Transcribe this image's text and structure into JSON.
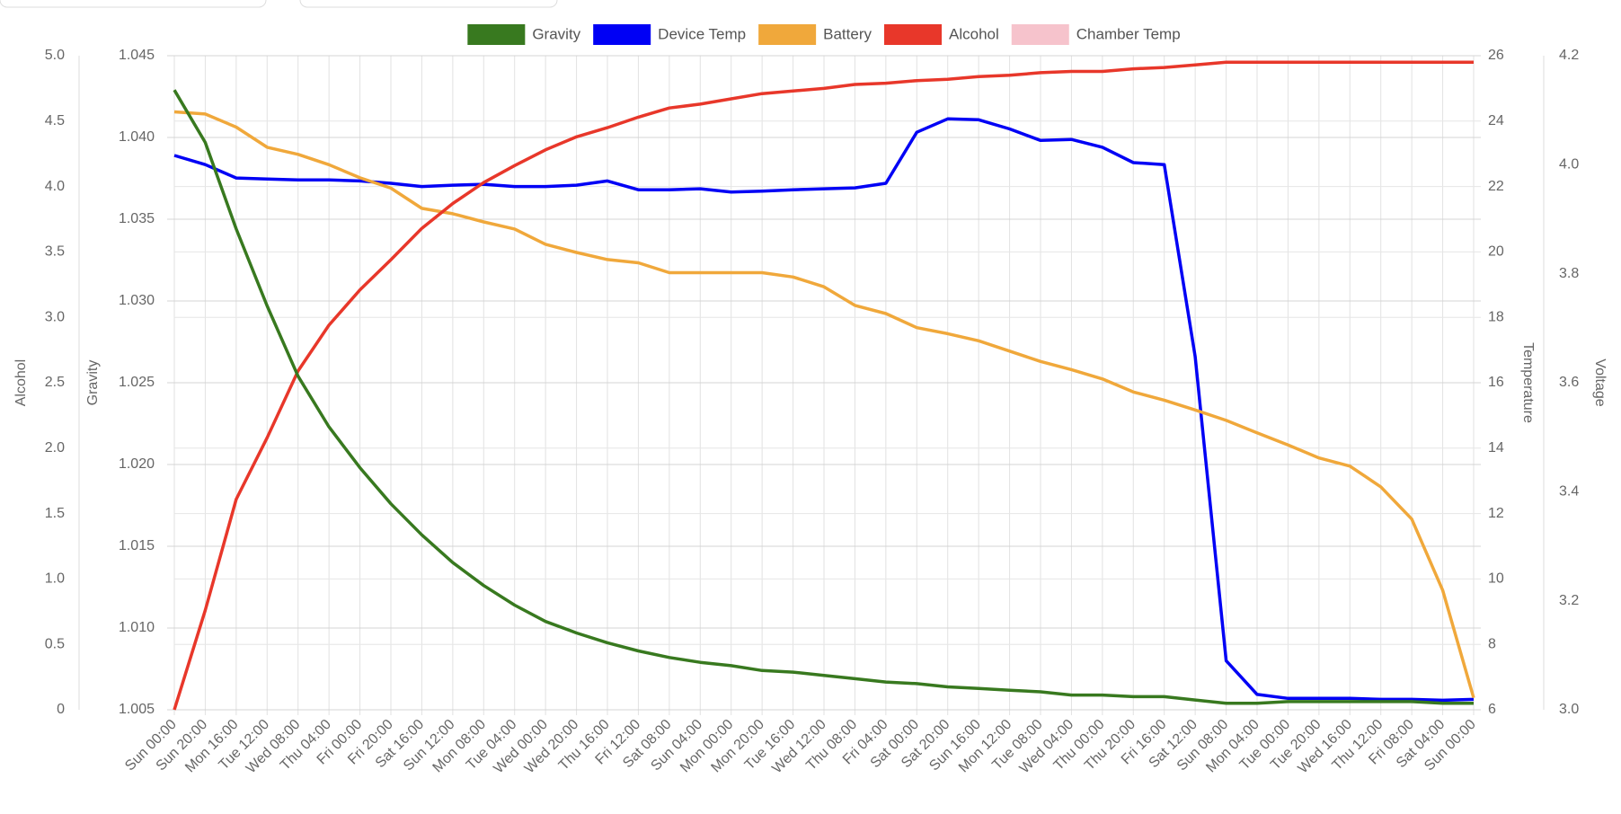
{
  "chart_data": {
    "type": "line",
    "grid": true,
    "legend": "top",
    "categories": [
      "Sun 00:00",
      "Sun 20:00",
      "Mon 16:00",
      "Tue 12:00",
      "Wed 08:00",
      "Thu 04:00",
      "Fri 00:00",
      "Fri 20:00",
      "Sat 16:00",
      "Sun 12:00",
      "Mon 08:00",
      "Tue 04:00",
      "Wed 00:00",
      "Wed 20:00",
      "Thu 16:00",
      "Fri 12:00",
      "Sat 08:00",
      "Sun 04:00",
      "Mon 00:00",
      "Mon 20:00",
      "Tue 16:00",
      "Wed 12:00",
      "Thu 08:00",
      "Fri 04:00",
      "Sat 00:00",
      "Sat 20:00",
      "Sun 16:00",
      "Mon 12:00",
      "Tue 08:00",
      "Wed 04:00",
      "Thu 00:00",
      "Thu 20:00",
      "Fri 16:00",
      "Sat 12:00",
      "Sun 08:00",
      "Mon 04:00",
      "Tue 00:00",
      "Tue 20:00",
      "Wed 16:00",
      "Thu 12:00",
      "Fri 08:00",
      "Sat 04:00",
      "Sun 00:00"
    ],
    "axes": [
      {
        "id": "alcohol",
        "label": "Alcohol",
        "position": "left",
        "lim": [
          0,
          5
        ],
        "ticks": [
          0,
          0.5,
          {
            "value": 1,
            "label": "1.0"
          },
          1.5,
          {
            "value": 2,
            "label": "2.0"
          },
          2.5,
          {
            "value": 3,
            "label": "3.0"
          },
          3.5,
          {
            "value": 4,
            "label": "4.0"
          },
          4.5,
          {
            "value": 5,
            "label": "5.0"
          }
        ]
      },
      {
        "id": "gravity",
        "label": "Gravity",
        "position": "left",
        "lim": [
          1.005,
          1.045
        ],
        "ticks": [
          1.005,
          {
            "value": 1.01,
            "label": "1.010"
          },
          1.015,
          {
            "value": 1.02,
            "label": "1.020"
          },
          1.025,
          {
            "value": 1.03,
            "label": "1.030"
          },
          1.035,
          {
            "value": 1.04,
            "label": "1.040"
          },
          1.045
        ]
      },
      {
        "id": "temperature",
        "label": "Temperature",
        "position": "right",
        "lim": [
          6,
          26
        ],
        "ticks": [
          6,
          8,
          10,
          12,
          14,
          16,
          18,
          20,
          22,
          24,
          26
        ]
      },
      {
        "id": "voltage",
        "label": "Voltage",
        "position": "right",
        "lim": [
          3.0,
          4.2
        ],
        "ticks": [
          {
            "value": 3,
            "label": "3.0"
          },
          3.2,
          3.4,
          3.6,
          3.8,
          {
            "value": 4,
            "label": "4.0"
          },
          4.2
        ]
      }
    ],
    "series": [
      {
        "name": "Gravity",
        "color": "#38791f",
        "axis": "gravity",
        "values": [
          1.0429,
          1.0397,
          1.0344,
          1.0297,
          1.0254,
          1.0223,
          1.0198,
          1.0176,
          1.0157,
          1.014,
          1.0126,
          1.0114,
          1.0104,
          1.0097,
          1.0091,
          1.0086,
          1.0082,
          1.0079,
          1.0077,
          1.0074,
          1.0073,
          1.0071,
          1.0069,
          1.0067,
          1.0066,
          1.0064,
          1.0063,
          1.0062,
          1.0061,
          1.0059,
          1.0059,
          1.0058,
          1.0058,
          1.0056,
          1.0054,
          1.0054,
          1.0055,
          1.0055,
          1.0055,
          1.0055,
          1.0055,
          1.0054,
          1.0054
        ]
      },
      {
        "name": "Device Temp",
        "color": "#0000f5",
        "axis": "temperature",
        "values": [
          22.95,
          22.67,
          22.26,
          22.23,
          22.2,
          22.2,
          22.17,
          22.1,
          22.0,
          22.04,
          22.07,
          22.0,
          22.0,
          22.04,
          22.17,
          21.9,
          21.9,
          21.93,
          21.83,
          21.86,
          21.9,
          21.93,
          21.96,
          22.1,
          23.66,
          24.07,
          24.04,
          23.76,
          23.41,
          23.44,
          23.2,
          22.73,
          22.67,
          16.8,
          7.5,
          6.47,
          6.35,
          6.35,
          6.35,
          6.32,
          6.32,
          6.29,
          6.32
        ]
      },
      {
        "name": "Battery",
        "color": "#f0a83b",
        "axis": "voltage",
        "values": [
          4.097,
          4.093,
          4.069,
          4.032,
          4.019,
          4.0,
          3.976,
          3.957,
          3.92,
          3.91,
          3.895,
          3.882,
          3.854,
          3.839,
          3.826,
          3.82,
          3.802,
          3.802,
          3.802,
          3.802,
          3.794,
          3.776,
          3.742,
          3.727,
          3.701,
          3.69,
          3.677,
          3.658,
          3.639,
          3.624,
          3.607,
          3.583,
          3.568,
          3.55,
          3.531,
          3.508,
          3.486,
          3.462,
          3.447,
          3.409,
          3.35,
          3.219,
          3.022
        ]
      },
      {
        "name": "Alcohol",
        "color": "#e8372a",
        "axis": "alcohol",
        "values": [
          0,
          0.76,
          1.61,
          2.08,
          2.59,
          2.94,
          3.21,
          3.44,
          3.68,
          3.87,
          4.03,
          4.16,
          4.28,
          4.38,
          4.45,
          4.53,
          4.6,
          4.63,
          4.67,
          4.71,
          4.73,
          4.75,
          4.78,
          4.79,
          4.81,
          4.82,
          4.84,
          4.85,
          4.87,
          4.88,
          4.88,
          4.9,
          4.91,
          4.93,
          4.95,
          4.95,
          4.95,
          4.95,
          4.95,
          4.95,
          4.95,
          4.95,
          4.95
        ]
      },
      {
        "name": "Chamber Temp",
        "color": "#f6c3cc",
        "axis": "temperature",
        "values": [
          null,
          null,
          null,
          null,
          null,
          null,
          null,
          null,
          null,
          null,
          null,
          null,
          null,
          null,
          null,
          null,
          null,
          null,
          null,
          null,
          null,
          null,
          null,
          null,
          null,
          null,
          null,
          null,
          null,
          null,
          null,
          null,
          null,
          null,
          null,
          null,
          null,
          null,
          null,
          null,
          null,
          null,
          null
        ]
      }
    ]
  }
}
